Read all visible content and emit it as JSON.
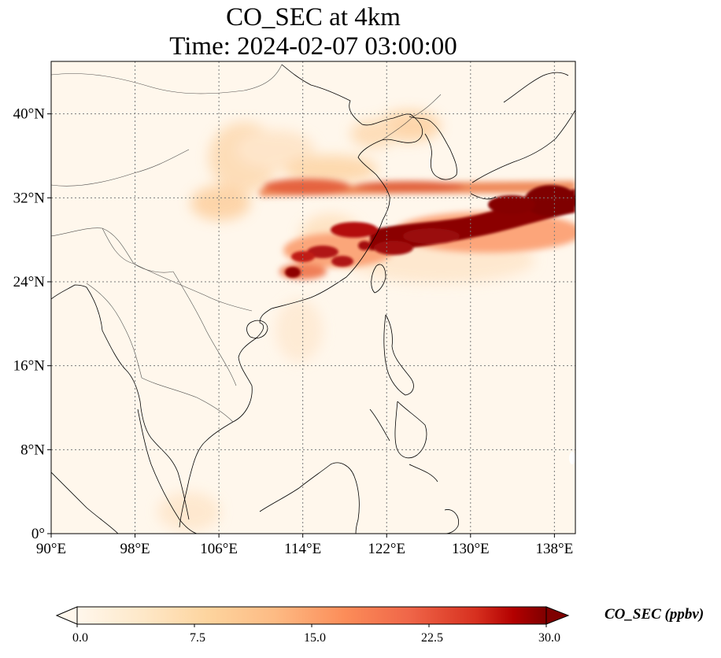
{
  "title": {
    "line1": "CO_SEC at 4km",
    "line2": "Time: 2024-02-07 03:00:00"
  },
  "map": {
    "lon_range": [
      90,
      140
    ],
    "lat_range": [
      0,
      45
    ],
    "lon_ticks": [
      90,
      98,
      106,
      114,
      122,
      130,
      138
    ],
    "lon_tick_labels": [
      "90°E",
      "98°E",
      "106°E",
      "114°E",
      "122°E",
      "130°E",
      "138°E"
    ],
    "lat_ticks": [
      0,
      8,
      16,
      24,
      32,
      40
    ],
    "lat_tick_labels": [
      "0°",
      "8°N",
      "16°N",
      "24°N",
      "32°N",
      "40°N"
    ],
    "gridlines": true,
    "colormap": "OrRd",
    "colors": {
      "background": "#fff7ec",
      "low": "#fdd49e",
      "mid": "#ef6548",
      "high": "#7f0000",
      "coastline": "#000000",
      "grid": "#7a7a7a"
    }
  },
  "colorbar": {
    "label": "CO_SEC (ppbv)",
    "min": 0.0,
    "max": 30.0,
    "ticks": [
      0.0,
      7.5,
      15.0,
      22.5,
      30.0
    ],
    "tick_labels": [
      "0.0",
      "7.5",
      "15.0",
      "22.5",
      "30.0"
    ],
    "extend": "both",
    "orientation": "horizontal"
  }
}
